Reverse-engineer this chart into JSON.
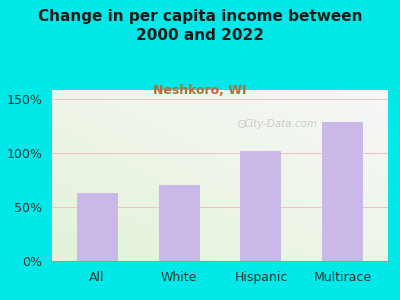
{
  "title": "Change in per capita income between\n2000 and 2022",
  "subtitle": "Neshkoro, WI",
  "categories": [
    "All",
    "White",
    "Hispanic",
    "Multirace"
  ],
  "values": [
    63,
    70,
    102,
    128
  ],
  "bar_color": "#c9b8e8",
  "background_color": "#00e8e8",
  "title_color": "#1a1a1a",
  "subtitle_color": "#b07030",
  "ylabel_ticks": [
    0,
    50,
    100,
    150
  ],
  "ylim": [
    0,
    158
  ],
  "grid_color": "#f0c0c0",
  "watermark": "City-Data.com",
  "title_fontsize": 11,
  "subtitle_fontsize": 9
}
